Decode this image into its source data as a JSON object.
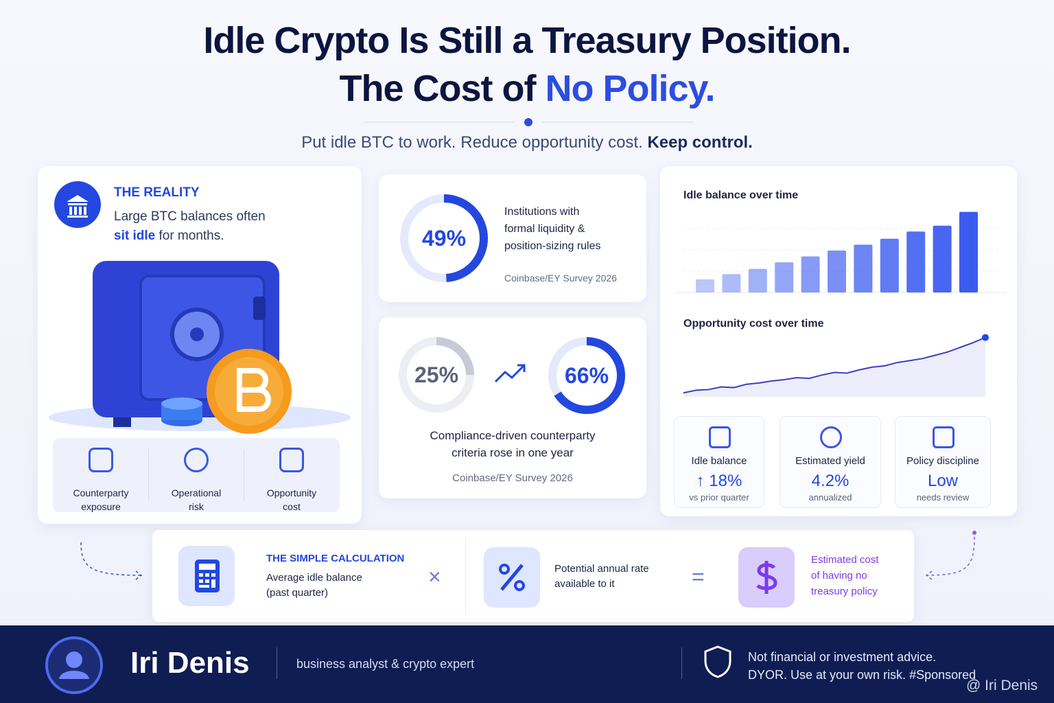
{
  "header": {
    "title_line1": "Idle Crypto Is Still a Treasury Position.",
    "title_line2_a": "The Cost of",
    "title_line2_b": "No Policy.",
    "subtitle_a": "Put idle BTC to work. Reduce opportunity cost.",
    "subtitle_b": "Keep control."
  },
  "reality": {
    "heading": "THE REALITY",
    "text_a": "Large BTC balances often",
    "text_b": "sit idle",
    "text_c": "for months.",
    "risks": [
      [
        "Counterparty",
        "exposure"
      ],
      [
        "Operational",
        "risk"
      ],
      [
        "Opportunity",
        "cost"
      ]
    ]
  },
  "stat1": {
    "value": 49,
    "label": "49%",
    "lines": [
      "Institutions with",
      "formal liquidity &",
      "position-sizing rules"
    ],
    "source": "Coinbase/EY Survey 2026"
  },
  "stat2": {
    "before": {
      "value": 25,
      "label": "25%"
    },
    "after": {
      "value": 66,
      "label": "66%"
    },
    "lines": [
      "Compliance-driven counterparty",
      "criteria rose in one year"
    ],
    "source": "Coinbase/EY Survey 2026"
  },
  "idle_chart": {
    "type": "bar",
    "title": "Idle balance over time",
    "values": [
      20,
      28,
      36,
      46,
      55,
      64,
      73,
      82,
      93,
      102,
      123
    ],
    "ylim": [
      0,
      130
    ],
    "color": "#3b5bf0"
  },
  "cost_chart": {
    "type": "line",
    "title": "Opportunity cost over time",
    "values": [
      6,
      10,
      11,
      15,
      14,
      19,
      21,
      24,
      26,
      29,
      28,
      33,
      37,
      36,
      41,
      45,
      47,
      52,
      55,
      58,
      63,
      68,
      75,
      82,
      90
    ],
    "ylim": [
      0,
      100
    ],
    "color": "#3a3fc4"
  },
  "kpis": [
    {
      "label": "Idle balance",
      "value": "↑ 18%",
      "note": "vs prior quarter"
    },
    {
      "label": "Estimated yield",
      "value": "4.2%",
      "note": "annualized"
    },
    {
      "label": "Policy discipline",
      "value": "Low",
      "note": "needs review"
    }
  ],
  "calculation": {
    "heading": "THE SIMPLE CALCULATION",
    "term1": [
      "Average idle balance",
      "(past quarter)"
    ],
    "operator1": "×",
    "term2": [
      "Potential annual rate",
      "available to it"
    ],
    "operator2": "=",
    "result": [
      "Estimated cost",
      "of having no",
      "treasury policy"
    ]
  },
  "footer": {
    "name": "Iri Denis",
    "role": "business analyst & crypto expert",
    "disclaimer_1": "Not financial or investment advice.",
    "disclaimer_2": "DYOR. Use at your own risk. #Sponsored",
    "watermark": "@ Iri Denis"
  }
}
